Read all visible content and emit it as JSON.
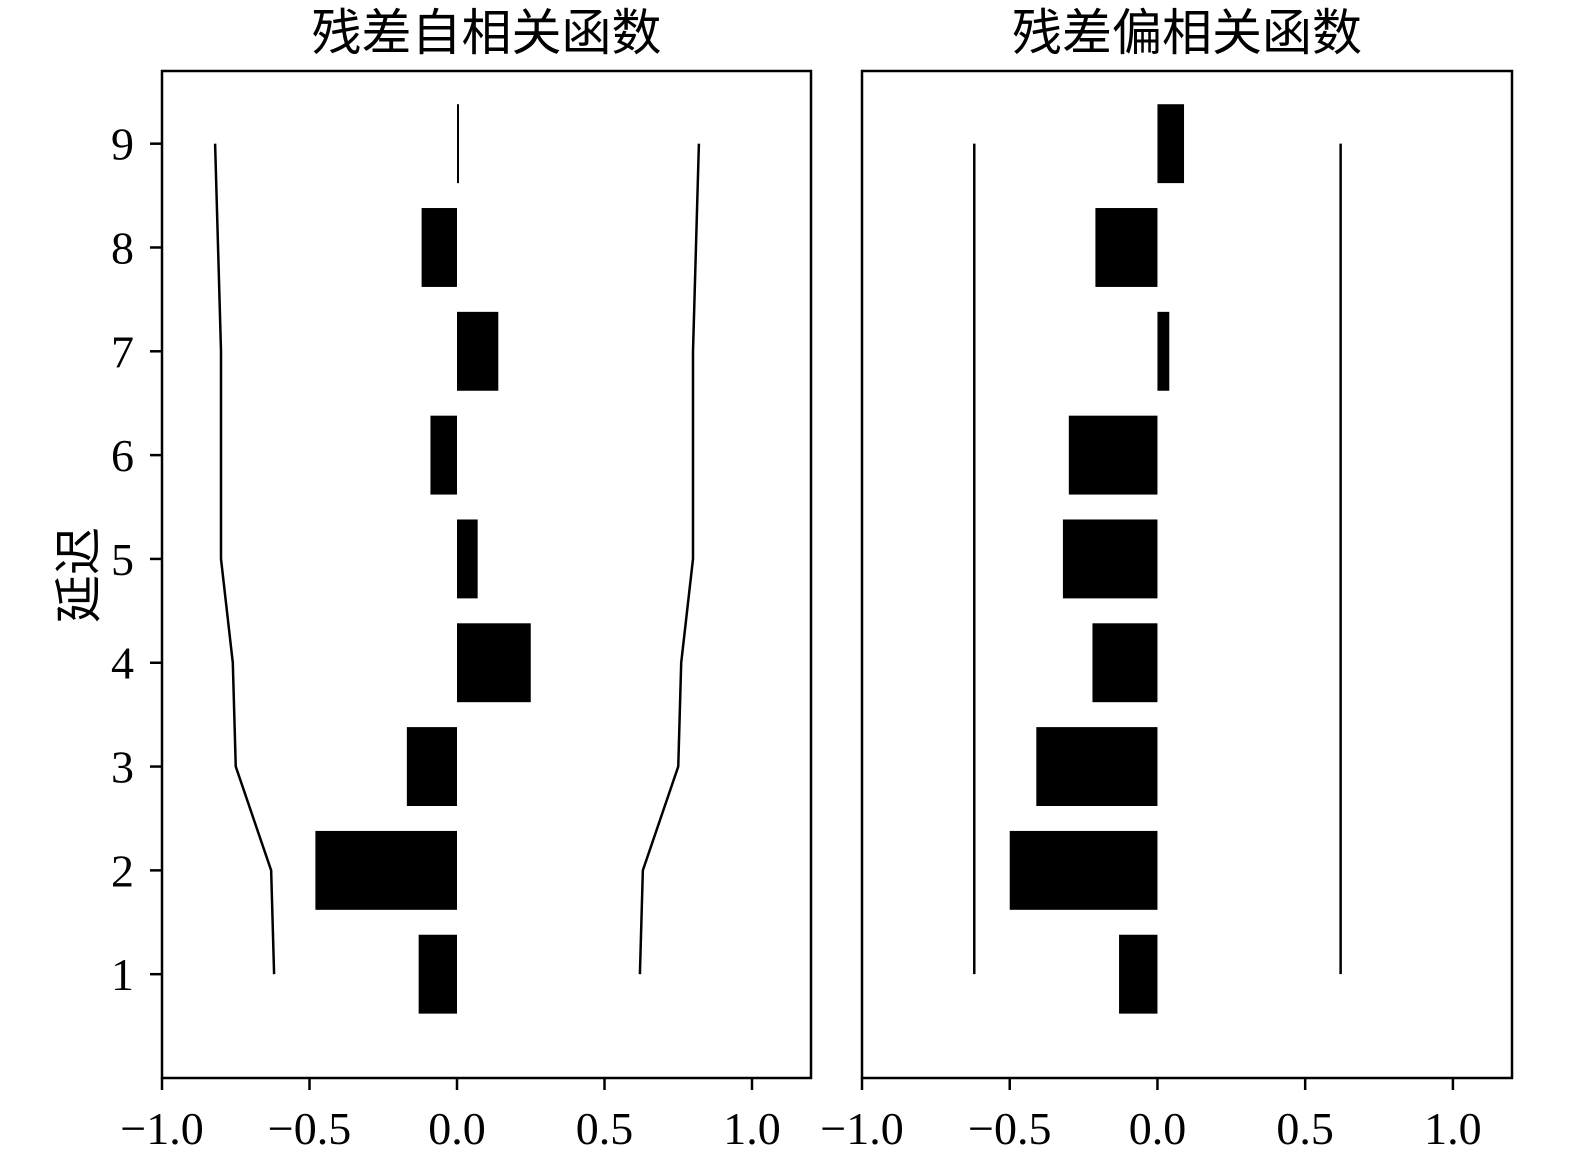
{
  "ylabel": "延迟",
  "chart_data": [
    {
      "type": "bar",
      "orientation": "horizontal",
      "title": "残差自相关函数",
      "xlabel": "",
      "ylabel": "延迟",
      "xlim": [
        -1.0,
        1.2
      ],
      "ylim": [
        0,
        9.7
      ],
      "xticks": [
        -1.0,
        -0.5,
        0.0,
        0.5,
        1.0
      ],
      "xtick_labels": [
        "−1.0",
        "−0.5",
        "0.0",
        "0.5",
        "1.0"
      ],
      "yticks": [
        1,
        2,
        3,
        4,
        5,
        6,
        7,
        8,
        9
      ],
      "ytick_labels": [
        "1",
        "2",
        "3",
        "4",
        "5",
        "6",
        "7",
        "8",
        "9"
      ],
      "categories": [
        1,
        2,
        3,
        4,
        5,
        6,
        7,
        8,
        9
      ],
      "values": [
        -0.13,
        -0.48,
        -0.17,
        0.25,
        0.07,
        -0.09,
        0.14,
        -0.12,
        0.0
      ],
      "confidence_lower": [
        -0.62,
        -0.63,
        -0.75,
        -0.76,
        -0.8,
        -0.8,
        -0.8,
        -0.81,
        -0.82
      ],
      "confidence_upper": [
        0.62,
        0.63,
        0.75,
        0.76,
        0.8,
        0.8,
        0.8,
        0.81,
        0.82
      ],
      "grid": false,
      "colors": {
        "bar": "#000000",
        "band": "#000000"
      }
    },
    {
      "type": "bar",
      "orientation": "horizontal",
      "title": "残差偏相关函数",
      "xlabel": "",
      "ylabel": "",
      "xlim": [
        -1.0,
        1.2
      ],
      "ylim": [
        0,
        9.7
      ],
      "xticks": [
        -1.0,
        -0.5,
        0.0,
        0.5,
        1.0
      ],
      "xtick_labels": [
        "−1.0",
        "−0.5",
        "0.0",
        "0.5",
        "1.0"
      ],
      "categories": [
        1,
        2,
        3,
        4,
        5,
        6,
        7,
        8,
        9
      ],
      "values": [
        -0.13,
        -0.5,
        -0.41,
        -0.22,
        -0.32,
        -0.3,
        0.04,
        -0.21,
        0.09
      ],
      "confidence_lower": [
        -0.62,
        -0.62,
        -0.62,
        -0.62,
        -0.62,
        -0.62,
        -0.62,
        -0.62,
        -0.62
      ],
      "confidence_upper": [
        0.62,
        0.62,
        0.62,
        0.62,
        0.62,
        0.62,
        0.62,
        0.62,
        0.62
      ],
      "grid": false,
      "colors": {
        "bar": "#000000",
        "band": "#000000"
      }
    }
  ]
}
